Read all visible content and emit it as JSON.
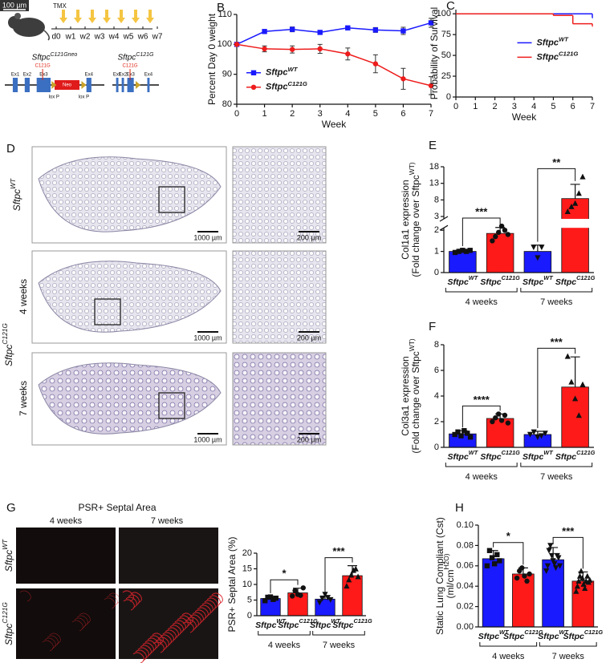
{
  "panel_A": {
    "scale_bar": "100 µm",
    "treatment": "TMX",
    "timeline": [
      "d0",
      "w1",
      "w2",
      "w3",
      "w4",
      "w5",
      "w6",
      "w7"
    ],
    "alleles": [
      {
        "name": "SftpcC121Gneo",
        "mutation": "C121G",
        "exons": [
          "Ex1",
          "Ex2",
          "Ex3",
          "Ex4"
        ],
        "cassette": "Neo",
        "lox": [
          "lox P",
          "lox P"
        ]
      },
      {
        "name": "SftpcC121G",
        "mutation": "C121G",
        "exons": [
          "Ex1",
          "Ex2",
          "Ex3",
          "Ex4"
        ]
      }
    ]
  },
  "panel_D": {
    "letter": "D",
    "rows": [
      "SftpcWT",
      "4 weeks",
      "7 weeks"
    ],
    "genotype": "SftpcC121G",
    "scale_bars": [
      "1000 µm",
      "200 µm"
    ]
  },
  "panel_G": {
    "letter": "G",
    "title": "PSR+ Septal Area",
    "columns": [
      "4 weeks",
      "7 weeks"
    ],
    "rows": [
      "SftpcWT",
      "SftpcC121G"
    ]
  },
  "chart_data": [
    {
      "type": "line",
      "panel": "B",
      "ylabel": [
        "Percent Day 0 weight"
      ],
      "xlabel": "Week",
      "x": [
        0,
        1,
        2,
        3,
        4,
        5,
        6,
        7
      ],
      "xlim": [
        0,
        7
      ],
      "xticks": [
        0,
        1,
        2,
        3,
        4,
        5,
        6,
        7
      ],
      "ylim": [
        80,
        110
      ],
      "yticks": [
        80,
        90,
        100,
        110
      ],
      "legend": "lower-left",
      "series": [
        {
          "name": "SftpcWT",
          "color": "#1a1aff",
          "marker": "square",
          "values": [
            100,
            104.3,
            105,
            104,
            105.5,
            104.8,
            104.5,
            107.2
          ],
          "errors": [
            0,
            0.6,
            0.8,
            0.5,
            0.5,
            0.8,
            1.2,
            1.5
          ]
        },
        {
          "name": "SftpcC121G",
          "color": "#ee1c1c",
          "marker": "circle",
          "values": [
            100,
            98.5,
            98.3,
            98.5,
            96.8,
            93.5,
            88.5,
            86.2
          ],
          "errors": [
            0,
            1,
            1.2,
            1.5,
            2,
            3,
            3.5,
            3
          ]
        }
      ]
    },
    {
      "type": "step",
      "panel": "C",
      "ylabel": [
        "Probability of Survival"
      ],
      "xlabel": "Week",
      "x": [
        0,
        1,
        2,
        3,
        4,
        5,
        6,
        7
      ],
      "xlim": [
        0,
        7
      ],
      "xticks": [
        0,
        1,
        2,
        3,
        4,
        5,
        6,
        7
      ],
      "ylim": [
        0,
        105
      ],
      "yticks": [
        0,
        25,
        50,
        75,
        100
      ],
      "legend": "center-right",
      "series": [
        {
          "name": "SftpcWT",
          "color": "#1a1aff",
          "values": [
            100,
            100,
            100,
            100,
            100,
            100,
            100,
            95
          ]
        },
        {
          "name": "SftpcC121G",
          "color": "#ee1c1c",
          "values": [
            100,
            100,
            100,
            100,
            100,
            98,
            88,
            85
          ]
        }
      ]
    },
    {
      "type": "bar",
      "panel": "E",
      "ylabel": [
        "Col1a1 expression",
        "(Fold change over SftpcWT)"
      ],
      "categories": [
        "SftpcWT",
        "SftpcC121G",
        "SftpcWT",
        "SftpcC121G"
      ],
      "groups": [
        "4 weeks",
        "7 weeks"
      ],
      "colors": [
        "#1a1aff",
        "#ff1a1a",
        "#1a1aff",
        "#ff1a1a"
      ],
      "markers": [
        "square",
        "circle",
        "triangle-down",
        "triangle"
      ],
      "values": [
        1.0,
        1.85,
        1.0,
        8.4
      ],
      "errors": [
        0.1,
        0.35,
        0.3,
        4.3
      ],
      "points": [
        [
          0.95,
          1.0,
          1.05,
          1.0,
          1.05
        ],
        [
          1.5,
          1.7,
          1.9,
          2.3,
          2.0,
          1.8
        ],
        [
          1.2,
          0.7,
          1.2
        ],
        [
          4.5,
          6,
          7,
          10,
          15
        ]
      ],
      "significance": [
        "***",
        "**"
      ],
      "ylim": [
        0,
        18
      ],
      "ybreak": [
        2,
        3
      ],
      "yticks": [
        0,
        1,
        2,
        3,
        8,
        13,
        18
      ]
    },
    {
      "type": "bar",
      "panel": "F",
      "ylabel": [
        "Col3a1 expression",
        "(Fold change over SftpcWT)"
      ],
      "categories": [
        "SftpcWT",
        "SftpcC121G",
        "SftpcWT",
        "SftpcC121G"
      ],
      "groups": [
        "4 weeks",
        "7 weeks"
      ],
      "colors": [
        "#1a1aff",
        "#ff1a1a",
        "#1a1aff",
        "#ff1a1a"
      ],
      "markers": [
        "square",
        "circle",
        "triangle-down",
        "triangle"
      ],
      "values": [
        1.05,
        2.25,
        1.0,
        4.7
      ],
      "errors": [
        0.25,
        0.35,
        0.25,
        2.35
      ],
      "points": [
        [
          1.0,
          1.2,
          0.9,
          1.3,
          1.1,
          0.8
        ],
        [
          2.0,
          2.3,
          2.6,
          2.1,
          2.5,
          1.9
        ],
        [
          1.0,
          1.2,
          0.8,
          0.9,
          1.1
        ],
        [
          7.1,
          5.1,
          3.8,
          2.5,
          4.9
        ]
      ],
      "significance": [
        "****",
        "***"
      ],
      "ylim": [
        0,
        8
      ],
      "yticks": [
        0,
        2,
        4,
        6,
        8
      ]
    },
    {
      "type": "bar",
      "panel": "",
      "ylabel": [
        "PSR+ Septal Area (%)"
      ],
      "categories": [
        "SftpcWT",
        "SftpcC121G",
        "SftpcWT",
        "SftpcC121G"
      ],
      "groups": [
        "4 weeks",
        "7 weeks"
      ],
      "colors": [
        "#1a1aff",
        "#ff1a1a",
        "#1a1aff",
        "#ff1a1a"
      ],
      "markers": [
        "square",
        "circle",
        "triangle-down",
        "triangle"
      ],
      "values": [
        5.5,
        7.3,
        5.3,
        12.8
      ],
      "errors": [
        0.7,
        1.5,
        1.0,
        3.2
      ],
      "points": [
        [
          4.8,
          5.9,
          6,
          5.2,
          5.6
        ],
        [
          6.3,
          8,
          6.8,
          6.5,
          8.9
        ],
        [
          4.2,
          5.5,
          6.8,
          5.8,
          5.1
        ],
        [
          9.5,
          11.5,
          13,
          14.5,
          15,
          12.5
        ]
      ],
      "significance": [
        "*",
        "***"
      ],
      "ylim": [
        0,
        20
      ],
      "yticks": [
        0,
        5,
        10,
        15,
        20
      ]
    },
    {
      "type": "bar",
      "panel": "H",
      "ylabel": [
        "Static Lung Compliant (Cst)",
        "(ml/cmH2O)"
      ],
      "categories": [
        "SftpcWT",
        "SftpcC121G",
        "SftpcWT",
        "SftpcC121G"
      ],
      "groups": [
        "4 weeks",
        "7 weeks"
      ],
      "colors": [
        "#1a1aff",
        "#ff1a1a",
        "#1a1aff",
        "#ff1a1a"
      ],
      "markers": [
        "square",
        "circle",
        "triangle-down",
        "triangle"
      ],
      "values": [
        0.067,
        0.052,
        0.066,
        0.045
      ],
      "errors": [
        0.008,
        0.006,
        0.012,
        0.009
      ],
      "points": [
        [
          0.06,
          0.075,
          0.068,
          0.062,
          0.071,
          0.065
        ],
        [
          0.048,
          0.055,
          0.058,
          0.05,
          0.045,
          0.052
        ],
        [
          0.055,
          0.06,
          0.075,
          0.08,
          0.07,
          0.065,
          0.062,
          0.058,
          0.07,
          0.068,
          0.06
        ],
        [
          0.035,
          0.04,
          0.045,
          0.05,
          0.055,
          0.048,
          0.042,
          0.038,
          0.045,
          0.05,
          0.044,
          0.046
        ]
      ],
      "significance": [
        "*",
        "***"
      ],
      "ylim": [
        0,
        0.1
      ],
      "yticks": [
        {
          "value": 0,
          "label": "0.00"
        },
        {
          "value": 0.02,
          "label": "0.02"
        },
        {
          "value": 0.04,
          "label": "0.04"
        },
        {
          "value": 0.06,
          "label": "0.06"
        },
        {
          "value": 0.08,
          "label": "0.08"
        },
        {
          "value": 0.1,
          "label": "0.10"
        }
      ]
    }
  ]
}
